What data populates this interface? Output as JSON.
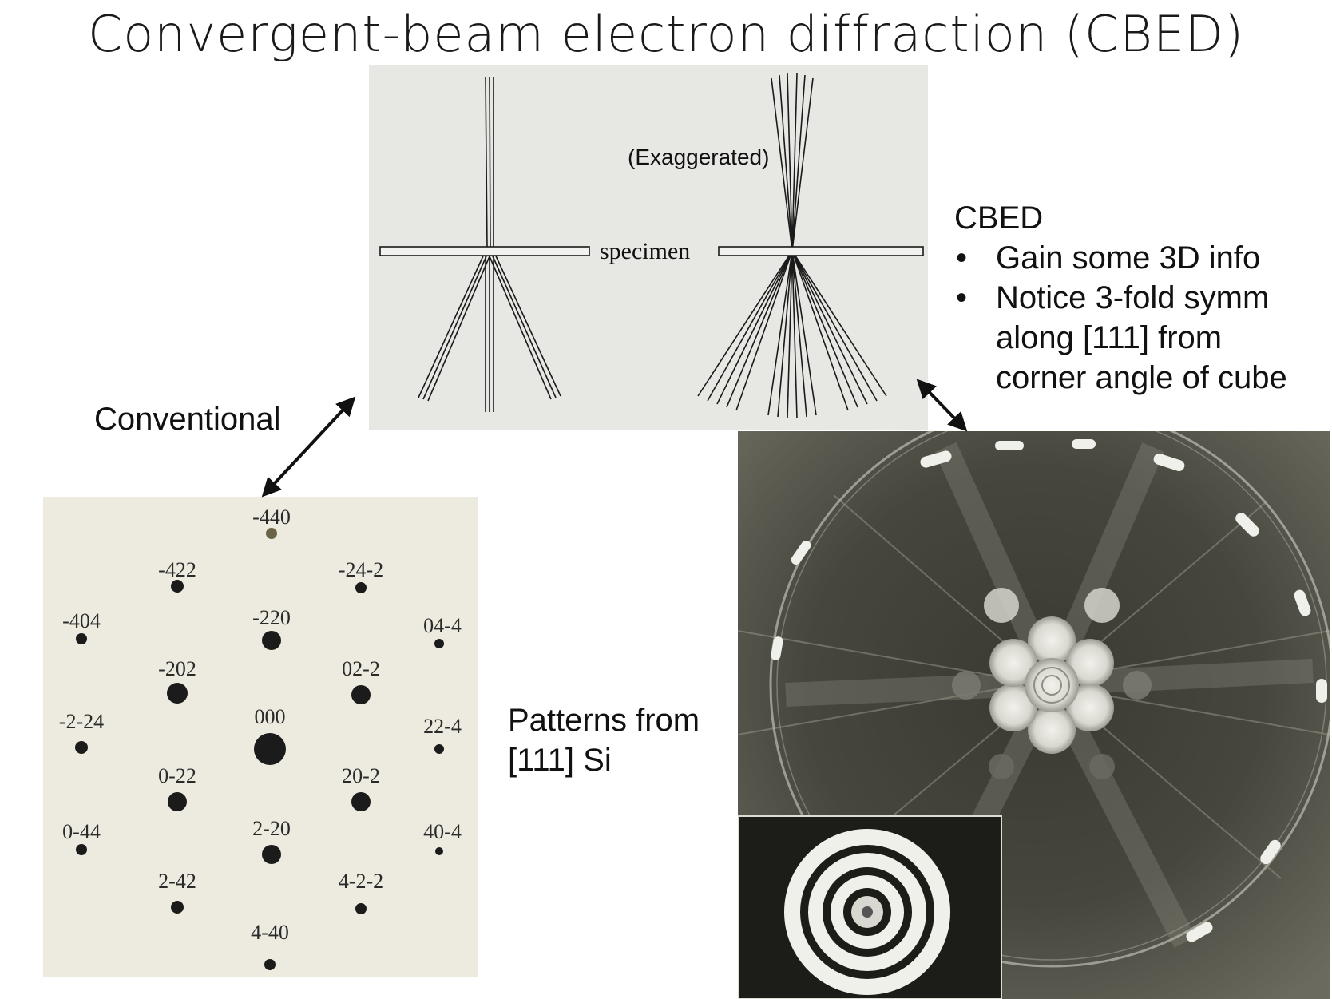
{
  "title": "Convergent-beam electron diffraction (CBED)",
  "ray_diagram": {
    "exaggerated_label": "(Exaggerated)",
    "specimen_label": "specimen"
  },
  "labels": {
    "conventional": "Conventional",
    "patterns_line1": "Patterns from",
    "patterns_line2": "[111] Si"
  },
  "cbed_notes": {
    "heading": "CBED",
    "bullet": "•",
    "bullets": [
      "Gain some 3D info",
      "Notice 3-fold symm along [111] from corner angle of cube"
    ],
    "bullet2_lines": [
      "Notice 3-fold symm",
      "along [111] from",
      "corner angle of cube"
    ]
  },
  "spot_pattern": {
    "spots": [
      "-440",
      "-422",
      "-24-2",
      "-404",
      "-220",
      "04-4",
      "-202",
      "02-2",
      "-2-24",
      "000",
      "22-4",
      "0-22",
      "20-2",
      "0-44",
      "2-20",
      "40-4",
      "2-42",
      "4-2-2",
      "4-40"
    ]
  },
  "colors": {
    "ray_panel_bg": "#e7e7e4",
    "spot_panel_bg": "#edeae0",
    "photo_bg": "#4a4a42"
  }
}
